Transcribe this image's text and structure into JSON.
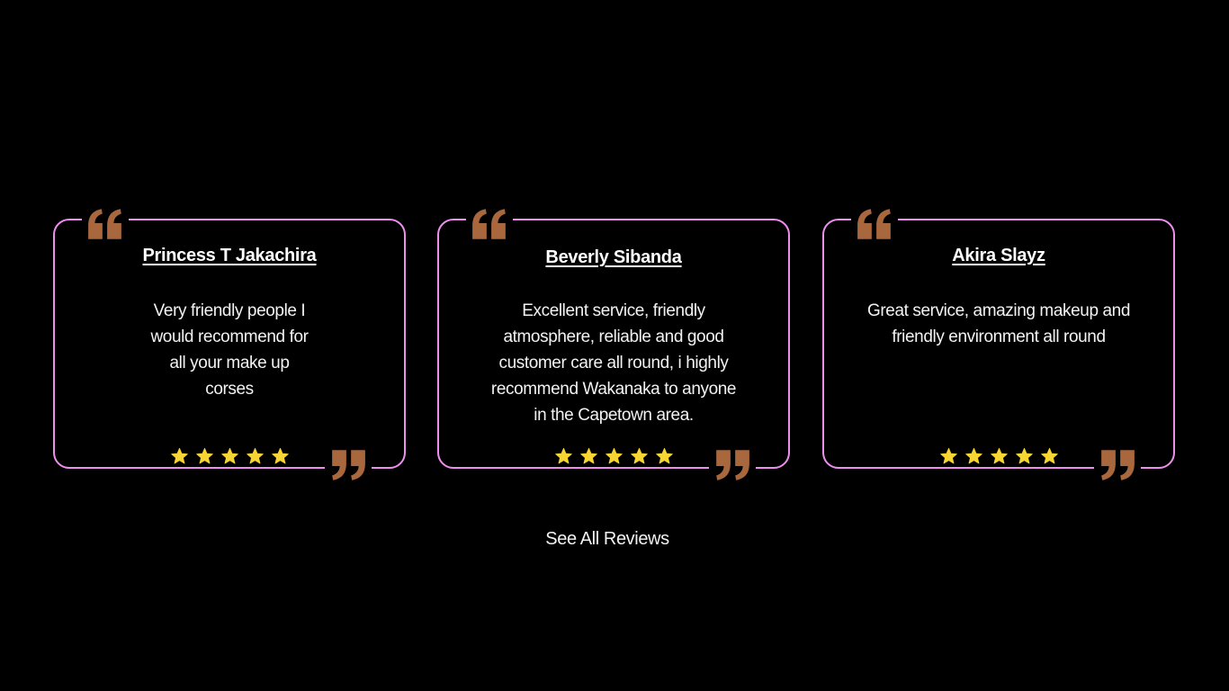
{
  "theme": {
    "background": "#000000",
    "card_border": "#f08ef0",
    "quote_color": "#a8673d",
    "star_color": "#f7d633",
    "text_color": "#ffffff"
  },
  "reviews": [
    {
      "name": "Princess T Jakachira",
      "text": "Very friendly people I would recommend for all your make up corses",
      "rating": 5
    },
    {
      "name": "Beverly Sibanda",
      "text": "Excellent service, friendly atmosphere, reliable and good customer care all round, i highly recommend Wakanaka to anyone in the Capetown area.",
      "rating": 5
    },
    {
      "name": "Akira Slayz",
      "text": "Great service, amazing makeup and friendly environment all round",
      "rating": 5
    }
  ],
  "see_all_label": "See All Reviews",
  "icons": {
    "open_quote": "open-quote-icon",
    "close_quote": "close-quote-icon",
    "star": "star-icon"
  }
}
